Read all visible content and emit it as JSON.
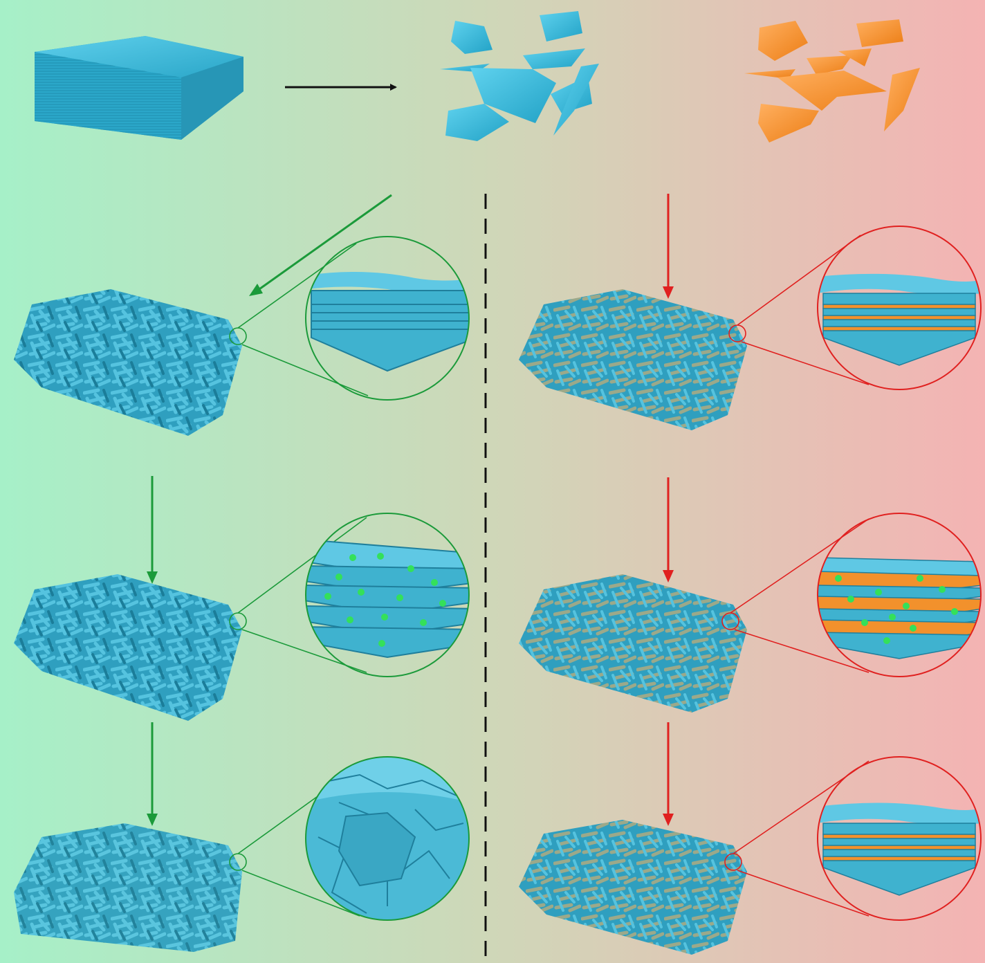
{
  "figure": {
    "description_visible_text": "",
    "colors": {
      "left_background": "#a6f0c8",
      "center_background": "#cfd7b8",
      "right_background": "#f4b3b3",
      "mxene_blue": "#3fb2cf",
      "mxene_blue_dark": "#1f8fae",
      "coating_orange": "#f2912c",
      "green_arrow": "#1b9a3a",
      "red_arrow": "#e0201f",
      "black_arrow": "#111111",
      "ion_green": "#34e05a"
    },
    "panels": {
      "top": [
        "bulk-mxene-block",
        "exfoliated-mxene-flakes",
        "coated-mxene-flakes"
      ],
      "left_column": [
        "pristine-electrode",
        "ion-intercalated-electrode",
        "degraded-electrode"
      ],
      "right_column": [
        "coated-electrode",
        "coated-ion-intercalated-electrode",
        "coated-stable-electrode"
      ]
    }
  }
}
